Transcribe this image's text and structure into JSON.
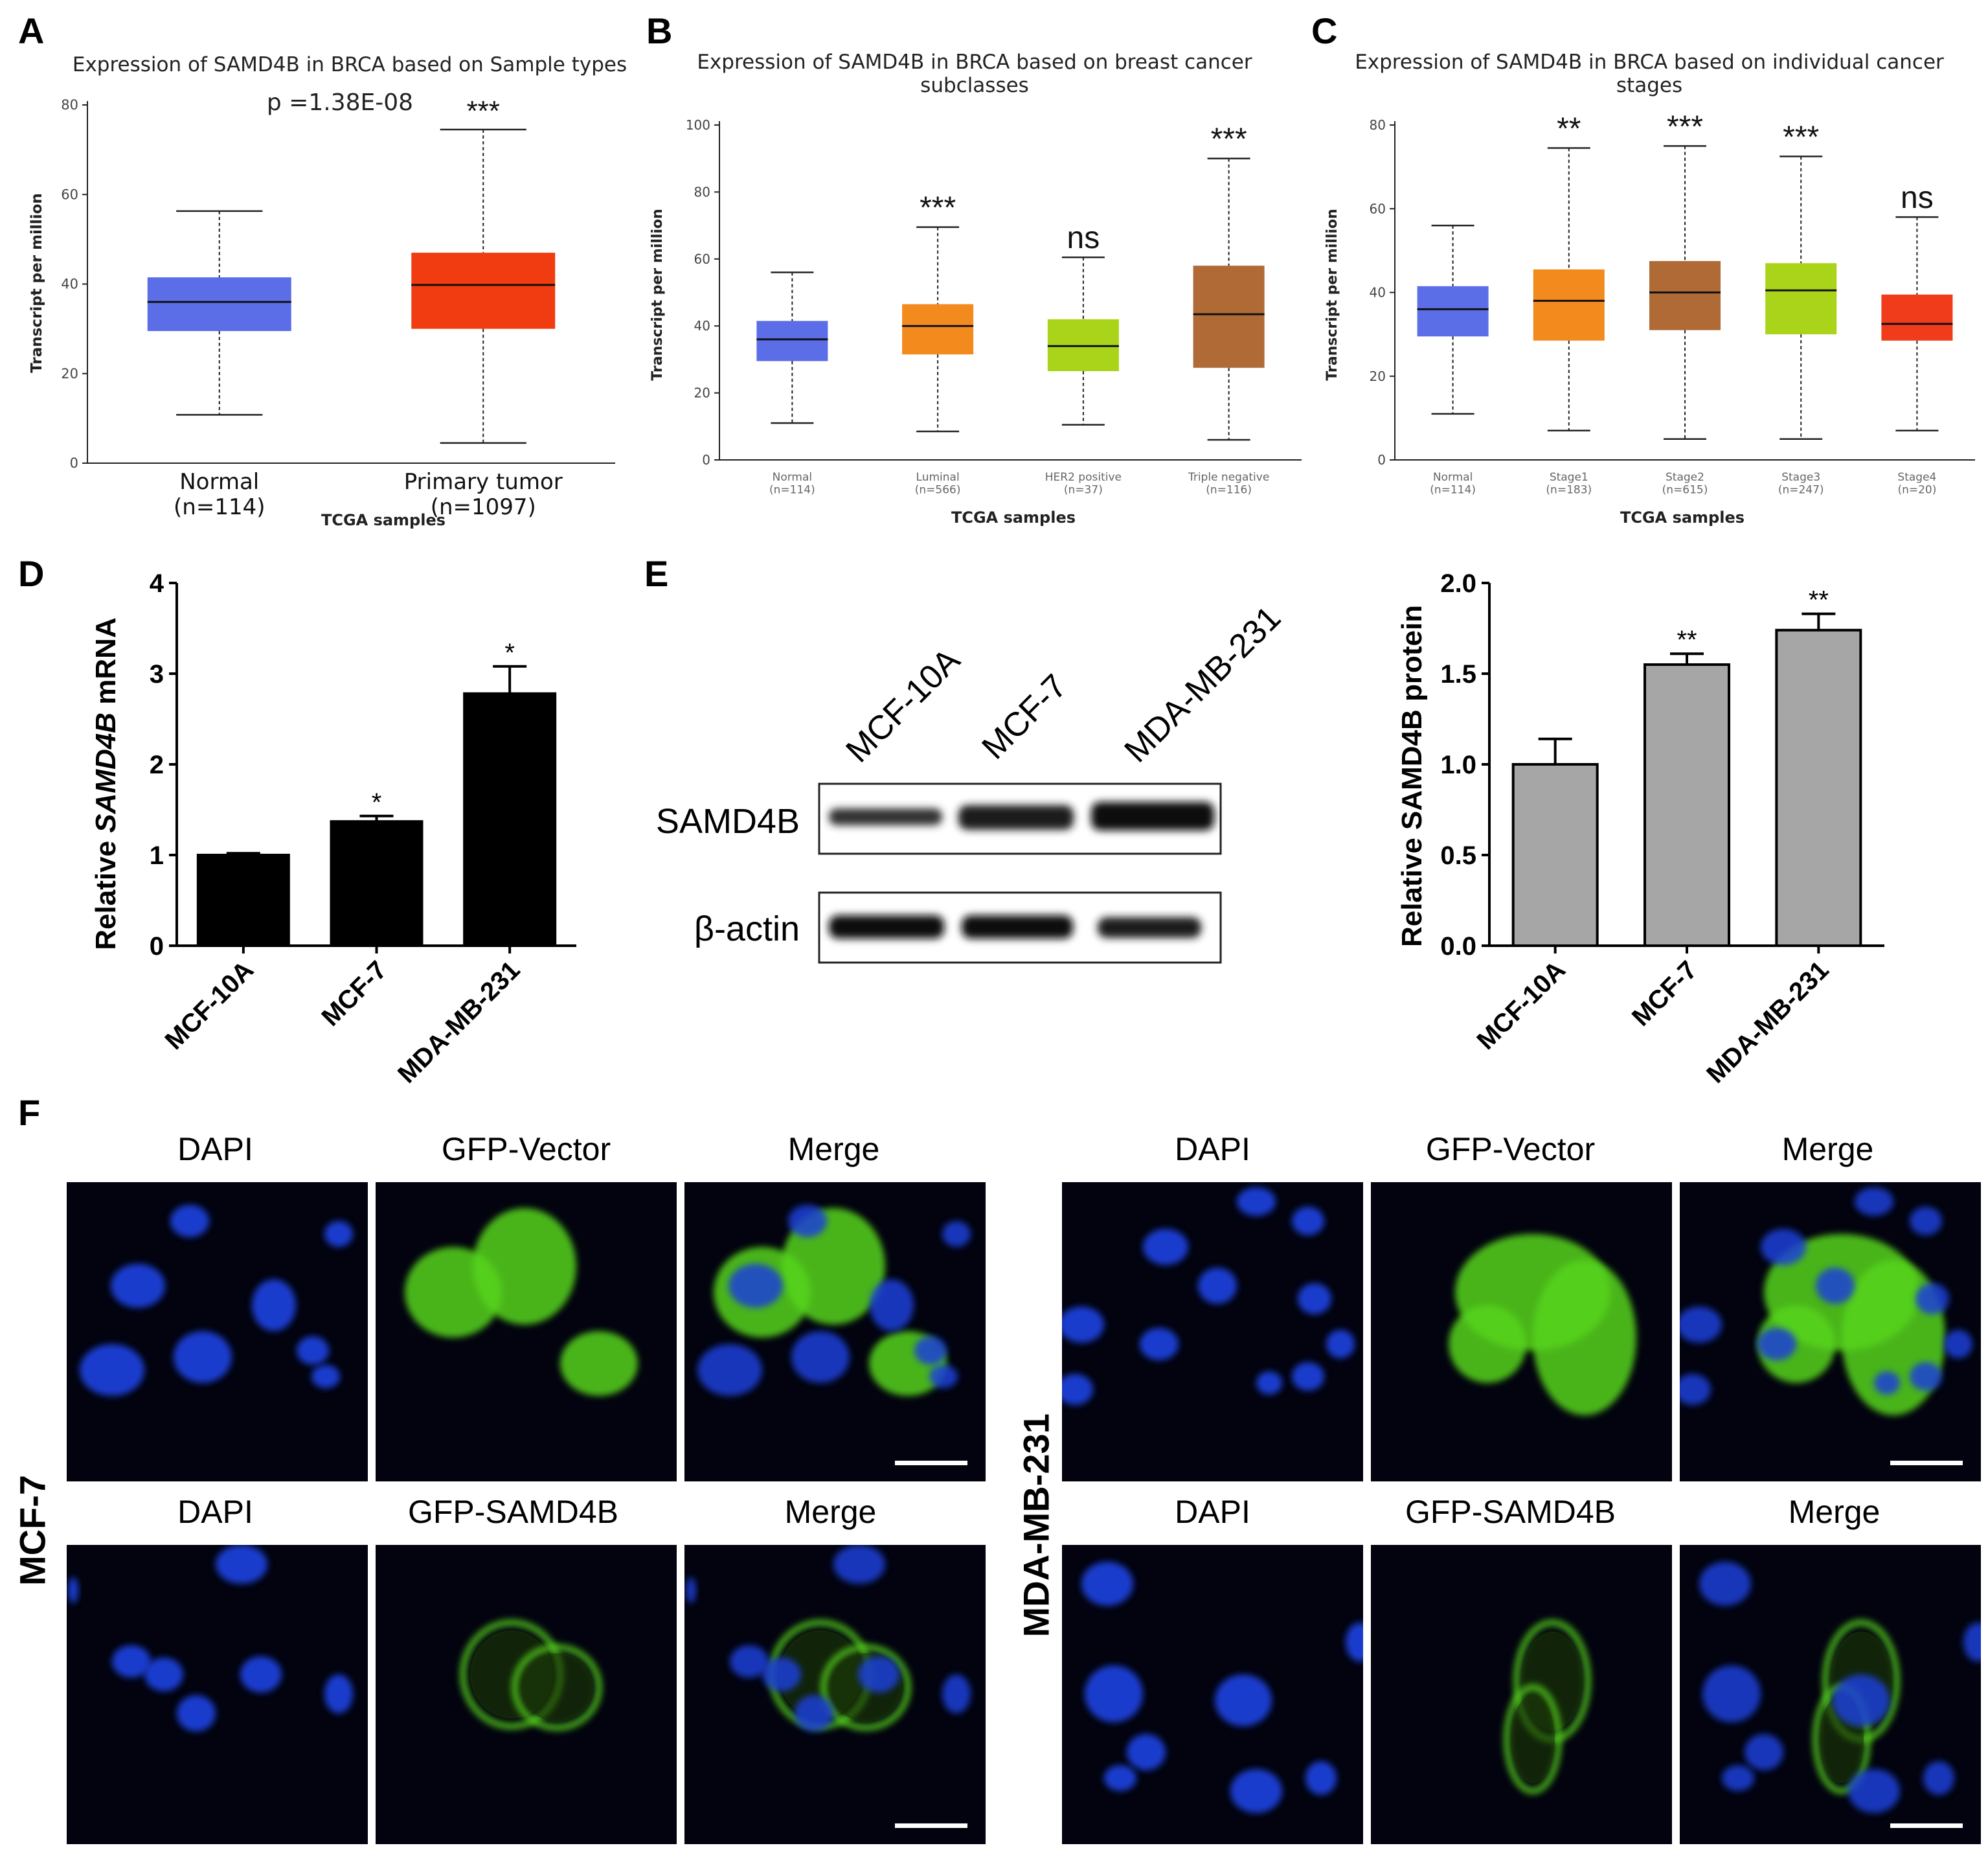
{
  "panels": {
    "A": {
      "letter": "A",
      "title": "Expression of SAMD4B in BRCA based on Sample types",
      "pvalue": "p =1.38E-08",
      "ylabel": "Transcript per million",
      "xlabel": "TCGA samples",
      "yticks": [
        "0",
        "20",
        "40",
        "60",
        "80"
      ]
    },
    "B": {
      "letter": "B",
      "title_line1": "Expression of SAMD4B in BRCA based on breast cancer",
      "title_line2": "subclasses",
      "ylabel": "Transcript per million",
      "xlabel": "TCGA samples",
      "yticks": [
        "0",
        "20",
        "40",
        "60",
        "80",
        "100"
      ]
    },
    "C": {
      "letter": "C",
      "title_line1": "Expression of SAMD4B in BRCA based on individual cancer",
      "title_line2": "stages",
      "ylabel": "Transcript per million",
      "xlabel": "TCGA samples",
      "yticks": [
        "0",
        "20",
        "40",
        "60",
        "80"
      ]
    },
    "D": {
      "letter": "D",
      "ylabel_pre": "Relative ",
      "ylabel_italic": "SAMD4B",
      "ylabel_post": " mRNA",
      "yticks": [
        "0",
        "1",
        "2",
        "3",
        "4"
      ]
    },
    "E": {
      "letter": "E",
      "blot_lanes": [
        "MCF-10A",
        "MCF-7",
        "MDA-MB-231"
      ],
      "blot_rows": [
        "SAMD4B",
        "β-actin"
      ],
      "ylabel": "Relative SAMD4B protein",
      "yticks": [
        "0.0",
        "0.5",
        "1.0",
        "1.5",
        "2.0"
      ]
    },
    "F": {
      "letter": "F",
      "row_labels": [
        "MCF-7",
        "MDA-MB-231"
      ],
      "left_top": [
        "DAPI",
        "GFP-Vector",
        "Merge"
      ],
      "left_bottom": [
        "DAPI",
        "GFP-SAMD4B",
        "Merge"
      ],
      "right_top": [
        "DAPI",
        "GFP-Vector",
        "Merge"
      ],
      "right_bottom": [
        "DAPI",
        "GFP-SAMD4B",
        "Merge"
      ]
    }
  },
  "colors": {
    "normal": "#5b6ee8",
    "tumor": "#f03c10",
    "luminal": "#f28a1e",
    "her2": "#a9d419",
    "triple": "#b06a35",
    "stage4": "#f03c1a",
    "bar_black": "#000000",
    "bar_gray": "#a6a6a6",
    "dapi": "#1a3fd8",
    "gfp": "#56d41a"
  },
  "chart_data": [
    {
      "id": "A",
      "type": "box",
      "title": "Expression of SAMD4B in BRCA based on Sample types",
      "xlabel": "TCGA samples",
      "ylabel": "Transcript per million",
      "ylim": [
        0,
        80
      ],
      "categories": [
        {
          "label": "Normal",
          "n": "(n=114)",
          "min": 10.8,
          "q1": 29.5,
          "median": 36,
          "q3": 41.5,
          "max": 56.3,
          "sig": "",
          "color": "#5b6ee8"
        },
        {
          "label": "Primary tumor",
          "n": "(n=1097)",
          "min": 4.5,
          "q1": 30,
          "median": 39.8,
          "q3": 47,
          "max": 74.5,
          "sig": "***",
          "color": "#f03c10"
        }
      ]
    },
    {
      "id": "B",
      "type": "box",
      "title": "Expression of SAMD4B in BRCA based on breast cancer subclasses",
      "xlabel": "TCGA samples",
      "ylabel": "Transcript per million",
      "ylim": [
        0,
        100
      ],
      "categories": [
        {
          "label": "Normal",
          "n": "(n=114)",
          "min": 11,
          "q1": 29.5,
          "median": 36,
          "q3": 41.5,
          "max": 56,
          "sig": "",
          "color": "#5b6ee8"
        },
        {
          "label": "Luminal",
          "n": "(n=566)",
          "min": 8.5,
          "q1": 31.5,
          "median": 40,
          "q3": 46.5,
          "max": 69.5,
          "sig": "***",
          "color": "#f28a1e"
        },
        {
          "label": "HER2 positive",
          "n": "(n=37)",
          "min": 10.5,
          "q1": 26.5,
          "median": 34,
          "q3": 42,
          "max": 60.5,
          "sig": "ns",
          "color": "#a9d419"
        },
        {
          "label": "Triple negative",
          "n": "(n=116)",
          "min": 6,
          "q1": 27.5,
          "median": 43.5,
          "q3": 58,
          "max": 90,
          "sig": "***",
          "color": "#b06a35"
        }
      ]
    },
    {
      "id": "C",
      "type": "box",
      "title": "Expression of SAMD4B in BRCA based on individual cancer stages",
      "xlabel": "TCGA samples",
      "ylabel": "Transcript per million",
      "ylim": [
        0,
        80
      ],
      "categories": [
        {
          "label": "Normal",
          "n": "(n=114)",
          "min": 11,
          "q1": 29.5,
          "median": 36,
          "q3": 41.5,
          "max": 56,
          "sig": "",
          "color": "#5b6ee8"
        },
        {
          "label": "Stage1",
          "n": "(n=183)",
          "min": 7,
          "q1": 28.5,
          "median": 38,
          "q3": 45.5,
          "max": 74.5,
          "sig": "**",
          "color": "#f28a1e"
        },
        {
          "label": "Stage2",
          "n": "(n=615)",
          "min": 5,
          "q1": 31,
          "median": 40,
          "q3": 47.5,
          "max": 75,
          "sig": "***",
          "color": "#b06a35"
        },
        {
          "label": "Stage3",
          "n": "(n=247)",
          "min": 5,
          "q1": 30,
          "median": 40.5,
          "q3": 47,
          "max": 72.5,
          "sig": "***",
          "color": "#a9d419"
        },
        {
          "label": "Stage4",
          "n": "(n=20)",
          "min": 7,
          "q1": 28.5,
          "median": 32.5,
          "q3": 39.5,
          "max": 58,
          "sig": "ns",
          "color": "#f03c1a"
        }
      ]
    },
    {
      "id": "D",
      "type": "bar",
      "ylabel": "Relative SAMD4B mRNA",
      "ylim": [
        0,
        4
      ],
      "categories": [
        "MCF-10A",
        "MCF-7",
        "MDA-MB-231"
      ],
      "values": [
        1.0,
        1.37,
        2.78
      ],
      "errors": [
        0.02,
        0.06,
        0.3
      ],
      "sig": [
        "",
        "*",
        "*"
      ]
    },
    {
      "id": "E",
      "type": "bar",
      "ylabel": "Relative SAMD4B protein",
      "ylim": [
        0,
        2
      ],
      "categories": [
        "MCF-10A",
        "MCF-7",
        "MDA-MB-231"
      ],
      "values": [
        1.0,
        1.55,
        1.74
      ],
      "errors": [
        0.14,
        0.06,
        0.09
      ],
      "sig": [
        "",
        "**",
        "**"
      ]
    }
  ]
}
